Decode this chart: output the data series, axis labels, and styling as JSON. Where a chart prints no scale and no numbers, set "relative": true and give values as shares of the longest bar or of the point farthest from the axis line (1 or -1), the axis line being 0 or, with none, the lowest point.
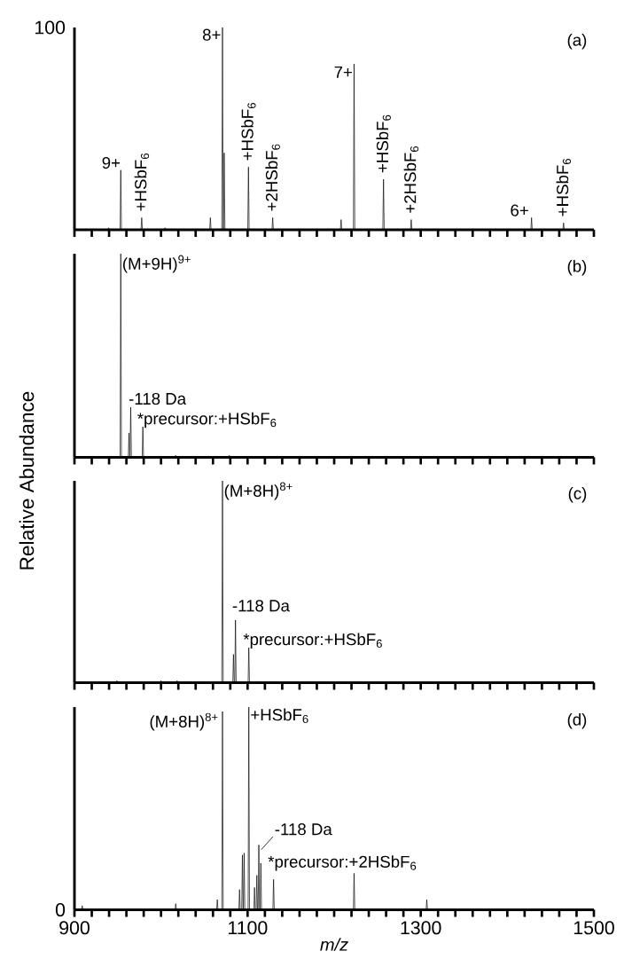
{
  "chart_data": [
    {
      "type": "line",
      "color": "#000000",
      "xlim": [
        900,
        1500
      ],
      "relative": true,
      "tick_labels": false,
      "xticks": [
        {
          "value": 900,
          "label": null
        },
        {
          "value": 920,
          "label": null
        },
        {
          "value": 940,
          "label": null
        },
        {
          "value": 960,
          "label": null
        },
        {
          "value": 980,
          "label": null
        },
        {
          "value": 1000,
          "label": null
        },
        {
          "value": 1020,
          "label": null
        },
        {
          "value": 1040,
          "label": null
        },
        {
          "value": 1060,
          "label": null
        },
        {
          "value": 1080,
          "label": null
        },
        {
          "value": 1100,
          "label": null
        },
        {
          "value": 1120,
          "label": null
        },
        {
          "value": 1140,
          "label": null
        },
        {
          "value": 1160,
          "label": null
        },
        {
          "value": 1180,
          "label": null
        },
        {
          "value": 1200,
          "label": null
        },
        {
          "value": 1220,
          "label": null
        },
        {
          "value": 1240,
          "label": null
        },
        {
          "value": 1260,
          "label": null
        },
        {
          "value": 1280,
          "label": null
        },
        {
          "value": 1300,
          "label": null
        },
        {
          "value": 1320,
          "label": null
        },
        {
          "value": 1340,
          "label": null
        },
        {
          "value": 1360,
          "label": null
        },
        {
          "value": 1380,
          "label": null
        },
        {
          "value": 1400,
          "label": null
        },
        {
          "value": 1420,
          "label": null
        },
        {
          "value": 1440,
          "label": null
        },
        {
          "value": 1460,
          "label": null
        },
        {
          "value": 1480,
          "label": null
        },
        {
          "value": 1500,
          "label": null
        }
      ],
      "x": [
        900,
        938.7,
        939.5,
        940.3,
        952.7,
        953.5,
        954.3,
        976.9,
        977.7,
        978.5,
        1003.8,
        1004.6,
        1005.4,
        1056.2,
        1057,
        1057.8,
        1070.2,
        1071,
        1071.8,
        1072.2,
        1073,
        1073.8,
        1100.2,
        1101,
        1101.8,
        1128.2,
        1129,
        1129.8,
        1207.2,
        1208,
        1208.8,
        1222.2,
        1223,
        1223.8,
        1256.2,
        1257,
        1257.8,
        1288.2,
        1289,
        1289.8,
        1427.2,
        1428,
        1428.8,
        1464.2,
        1465,
        1465.8,
        1500
      ],
      "values": [
        0,
        0,
        0.01,
        0,
        0,
        0.295,
        0,
        0,
        0.06,
        0,
        0,
        0.01,
        0,
        0,
        0.06,
        0,
        0,
        1,
        0,
        0,
        0.38,
        0,
        0,
        0.31,
        0,
        0,
        0.06,
        0,
        0,
        0.05,
        0,
        0,
        0.82,
        0,
        0,
        0.25,
        0,
        0,
        0.05,
        0,
        0,
        0.06,
        0,
        0,
        0.034,
        0,
        0
      ],
      "annotations": [
        "(a)",
        "100",
        {
          "text": "9+",
          "x": 953.5,
          "y": 0.295
        },
        {
          "text": "+HSbF$_{6}$",
          "x": 977.7,
          "y": 0.06
        },
        {
          "text": "8+",
          "x": 1071,
          "y": 1
        },
        {
          "text": "+HSbF$_{6}$",
          "x": 1101,
          "y": 0.31
        },
        {
          "text": "+2HSbF$_{6}$",
          "x": 1129,
          "y": 0.06
        },
        {
          "text": "7+",
          "x": 1223,
          "y": 0.82
        },
        {
          "text": "+HSbF$_{6}$",
          "x": 1257,
          "y": 0.25
        },
        {
          "text": "+2HSbF$_{6}$",
          "x": 1289,
          "y": 0.05
        },
        {
          "text": "6+",
          "x": 1428,
          "y": 0.06
        },
        {
          "text": "+HSbF$_{6}$",
          "x": 1465,
          "y": 0.034
        }
      ]
    },
    {
      "type": "line",
      "color": "#000000",
      "xlim": [
        900,
        1500
      ],
      "relative": true,
      "tick_labels": false,
      "xticks": [
        {
          "value": 900,
          "label": null
        },
        {
          "value": 920,
          "label": null
        },
        {
          "value": 940,
          "label": null
        },
        {
          "value": 960,
          "label": null
        },
        {
          "value": 980,
          "label": null
        },
        {
          "value": 1000,
          "label": null
        },
        {
          "value": 1020,
          "label": null
        },
        {
          "value": 1040,
          "label": null
        },
        {
          "value": 1060,
          "label": null
        },
        {
          "value": 1080,
          "label": null
        },
        {
          "value": 1100,
          "label": null
        },
        {
          "value": 1120,
          "label": null
        },
        {
          "value": 1140,
          "label": null
        },
        {
          "value": 1160,
          "label": null
        },
        {
          "value": 1180,
          "label": null
        },
        {
          "value": 1200,
          "label": null
        },
        {
          "value": 1220,
          "label": null
        },
        {
          "value": 1240,
          "label": null
        },
        {
          "value": 1260,
          "label": null
        },
        {
          "value": 1280,
          "label": null
        },
        {
          "value": 1300,
          "label": null
        },
        {
          "value": 1320,
          "label": null
        },
        {
          "value": 1340,
          "label": null
        },
        {
          "value": 1360,
          "label": null
        },
        {
          "value": 1380,
          "label": null
        },
        {
          "value": 1400,
          "label": null
        },
        {
          "value": 1420,
          "label": null
        },
        {
          "value": 1440,
          "label": null
        },
        {
          "value": 1460,
          "label": null
        },
        {
          "value": 1480,
          "label": null
        },
        {
          "value": 1500,
          "label": null
        }
      ],
      "x": [
        900,
        952.7,
        953.5,
        954.3,
        962.2,
        963,
        963.8,
        964.2,
        965,
        965.8,
        978.2,
        979,
        979.8,
        1016.2,
        1017,
        1017.8,
        1078.2,
        1079,
        1079.8,
        1500
      ],
      "values": [
        0,
        0,
        1,
        0,
        0,
        0.12,
        0,
        0,
        0.246,
        0,
        0,
        0.15,
        0,
        0,
        0.01,
        0,
        0,
        0.01,
        0,
        0
      ],
      "annotations": [
        "(b)",
        {
          "text": "(M+9H)$^{9+}$",
          "x": 953.5,
          "y": 1
        },
        {
          "text": "-118 Da",
          "x": 965,
          "y": 0.246
        },
        {
          "text": "*precursor:+HSbF$_{6}$",
          "x": 979,
          "y": 0.15
        }
      ]
    },
    {
      "type": "line",
      "color": "#000000",
      "xlim": [
        900,
        1500
      ],
      "relative": true,
      "tick_labels": false,
      "ylabel": "Relative Abundance",
      "xticks": [
        {
          "value": 900,
          "label": null
        },
        {
          "value": 920,
          "label": null
        },
        {
          "value": 940,
          "label": null
        },
        {
          "value": 960,
          "label": null
        },
        {
          "value": 980,
          "label": null
        },
        {
          "value": 1000,
          "label": null
        },
        {
          "value": 1020,
          "label": null
        },
        {
          "value": 1040,
          "label": null
        },
        {
          "value": 1060,
          "label": null
        },
        {
          "value": 1080,
          "label": null
        },
        {
          "value": 1100,
          "label": null
        },
        {
          "value": 1120,
          "label": null
        },
        {
          "value": 1140,
          "label": null
        },
        {
          "value": 1160,
          "label": null
        },
        {
          "value": 1180,
          "label": null
        },
        {
          "value": 1200,
          "label": null
        },
        {
          "value": 1220,
          "label": null
        },
        {
          "value": 1240,
          "label": null
        },
        {
          "value": 1260,
          "label": null
        },
        {
          "value": 1280,
          "label": null
        },
        {
          "value": 1300,
          "label": null
        },
        {
          "value": 1320,
          "label": null
        },
        {
          "value": 1340,
          "label": null
        },
        {
          "value": 1360,
          "label": null
        },
        {
          "value": 1380,
          "label": null
        },
        {
          "value": 1400,
          "label": null
        },
        {
          "value": 1420,
          "label": null
        },
        {
          "value": 1440,
          "label": null
        },
        {
          "value": 1460,
          "label": null
        },
        {
          "value": 1480,
          "label": null
        },
        {
          "value": 1500,
          "label": null
        }
      ],
      "x": [
        900,
        948.2,
        949,
        949.8,
        999.2,
        1000,
        1000.8,
        1017.8,
        1018.6,
        1019.4,
        1070.2,
        1071,
        1071.8,
        1082.9,
        1083.7,
        1084.5,
        1085.2,
        1086,
        1086.8,
        1100.6,
        1101.4,
        1102.2,
        1500
      ],
      "values": [
        0,
        0,
        0.01,
        0,
        0,
        0.01,
        0,
        0,
        0.01,
        0,
        0,
        1,
        0,
        0,
        0.14,
        0,
        0,
        0.31,
        0,
        0,
        0.174,
        0,
        0
      ],
      "annotations": [
        "(c)",
        {
          "text": "(M+8H)$^{8+}$",
          "x": 1071,
          "y": 1
        },
        {
          "text": "-118 Da",
          "x": 1086,
          "y": 0.31
        },
        {
          "text": "*precursor:+HSbF$_{6}$",
          "x": 1101.4,
          "y": 0.174
        }
      ]
    },
    {
      "type": "line",
      "color": "#000000",
      "xlim": [
        900,
        1500
      ],
      "relative": true,
      "tick_labels": "x",
      "xlabel": "m/z",
      "xticks": [
        900,
        {
          "value": 920,
          "label": null
        },
        {
          "value": 940,
          "label": null
        },
        {
          "value": 960,
          "label": null
        },
        {
          "value": 980,
          "label": null
        },
        {
          "value": 1000,
          "label": null
        },
        {
          "value": 1020,
          "label": null
        },
        {
          "value": 1040,
          "label": null
        },
        {
          "value": 1060,
          "label": null
        },
        {
          "value": 1080,
          "label": null
        },
        1100,
        {
          "value": 1120,
          "label": null
        },
        {
          "value": 1140,
          "label": null
        },
        {
          "value": 1160,
          "label": null
        },
        {
          "value": 1180,
          "label": null
        },
        {
          "value": 1200,
          "label": null
        },
        {
          "value": 1220,
          "label": null
        },
        {
          "value": 1240,
          "label": null
        },
        {
          "value": 1260,
          "label": null
        },
        {
          "value": 1280,
          "label": null
        },
        1300,
        {
          "value": 1320,
          "label": null
        },
        {
          "value": 1340,
          "label": null
        },
        {
          "value": 1360,
          "label": null
        },
        {
          "value": 1380,
          "label": null
        },
        {
          "value": 1400,
          "label": null
        },
        {
          "value": 1420,
          "label": null
        },
        {
          "value": 1440,
          "label": null
        },
        {
          "value": 1460,
          "label": null
        },
        {
          "value": 1480,
          "label": null
        },
        1500
      ],
      "x": [
        900,
        908.2,
        909,
        909.8,
        1016.2,
        1017,
        1017.8,
        1064.2,
        1065,
        1065.8,
        1070.2,
        1071,
        1071.8,
        1089.9,
        1090.7,
        1091.5,
        1093.2,
        1094,
        1094.8,
        1095.2,
        1096,
        1096.8,
        1100.6,
        1101.4,
        1102.2,
        1107.2,
        1108,
        1108.8,
        1109.9,
        1110.7,
        1111.5,
        1112.2,
        1113,
        1113.8,
        1114.5,
        1115.3,
        1116.1,
        1129.2,
        1130,
        1130.8,
        1222.2,
        1223,
        1223.8,
        1306.2,
        1307,
        1307.8,
        1500
      ],
      "values": [
        0,
        0,
        0.02,
        0,
        0,
        0.03,
        0,
        0,
        0.05,
        0,
        0,
        0.978,
        0,
        0,
        0.1,
        0,
        0,
        0.27,
        0,
        0,
        0.28,
        0,
        0,
        1,
        0,
        0,
        0.11,
        0,
        0,
        0.17,
        0,
        0,
        0.32,
        0,
        0,
        0.23,
        0,
        0,
        0.15,
        0,
        0,
        0.18,
        0,
        0,
        0.05,
        0,
        0
      ],
      "annotations": [
        "(d)",
        "0",
        {
          "text": "(M+8H)$^{8+}$",
          "x": 1071,
          "y": 0.978
        },
        {
          "text": "+HSbF$_{6}$",
          "x": 1101.4,
          "y": 1
        },
        {
          "text": "-118 Da",
          "x": 1113,
          "y": 0.32
        },
        {
          "text": "*precursor:+2HSbF$_{6}$",
          "x": 1130,
          "y": 0.15
        }
      ]
    }
  ]
}
